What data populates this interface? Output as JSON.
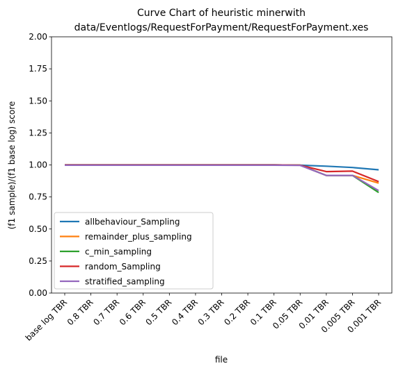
{
  "chart_data": {
    "type": "line",
    "title_line1": "Curve Chart of heuristic minerwith",
    "title_line2": "data/Eventlogs/RequestForPayment/RequestForPayment.xes",
    "xlabel": "file",
    "ylabel": "(f1 sample)/(f1 base log) score",
    "categories": [
      "base log TBR",
      "0.8 TBR",
      "0.7 TBR",
      "0.6 TBR",
      "0.5 TBR",
      "0.4 TBR",
      "0.3 TBR",
      "0.2 TBR",
      "0.1 TBR",
      "0.05 TBR",
      "0.01 TBR",
      "0.005 TBR",
      "0.001 TBR"
    ],
    "ylim": [
      0.0,
      2.0
    ],
    "yticks": [
      "0.00",
      "0.25",
      "0.50",
      "0.75",
      "1.00",
      "1.25",
      "1.50",
      "1.75",
      "2.00"
    ],
    "grid": false,
    "legend_position": "lower-left",
    "series": [
      {
        "name": "allbehaviour_Sampling",
        "color": "#1f77b4",
        "values": [
          1.0,
          1.0,
          1.0,
          1.0,
          1.0,
          1.0,
          1.0,
          1.0,
          1.0,
          0.998,
          0.99,
          0.98,
          0.962
        ]
      },
      {
        "name": "remainder_plus_sampling",
        "color": "#ff7f0e",
        "values": [
          1.0,
          1.0,
          1.0,
          1.0,
          1.0,
          1.0,
          1.0,
          1.0,
          1.0,
          0.998,
          0.918,
          0.918,
          0.858
        ]
      },
      {
        "name": "c_min_sampling",
        "color": "#2ca02c",
        "values": [
          1.0,
          1.0,
          1.0,
          1.0,
          1.0,
          1.0,
          1.0,
          1.0,
          1.0,
          0.998,
          0.918,
          0.918,
          0.785
        ]
      },
      {
        "name": "random_Sampling",
        "color": "#d62728",
        "values": [
          1.0,
          1.0,
          1.0,
          1.0,
          1.0,
          1.0,
          1.0,
          1.0,
          1.0,
          0.998,
          0.948,
          0.952,
          0.87
        ]
      },
      {
        "name": "stratified_sampling",
        "color": "#9467bd",
        "values": [
          0.998,
          0.998,
          0.998,
          0.998,
          0.998,
          0.998,
          0.998,
          0.998,
          0.998,
          0.996,
          0.918,
          0.918,
          0.8
        ]
      }
    ]
  }
}
